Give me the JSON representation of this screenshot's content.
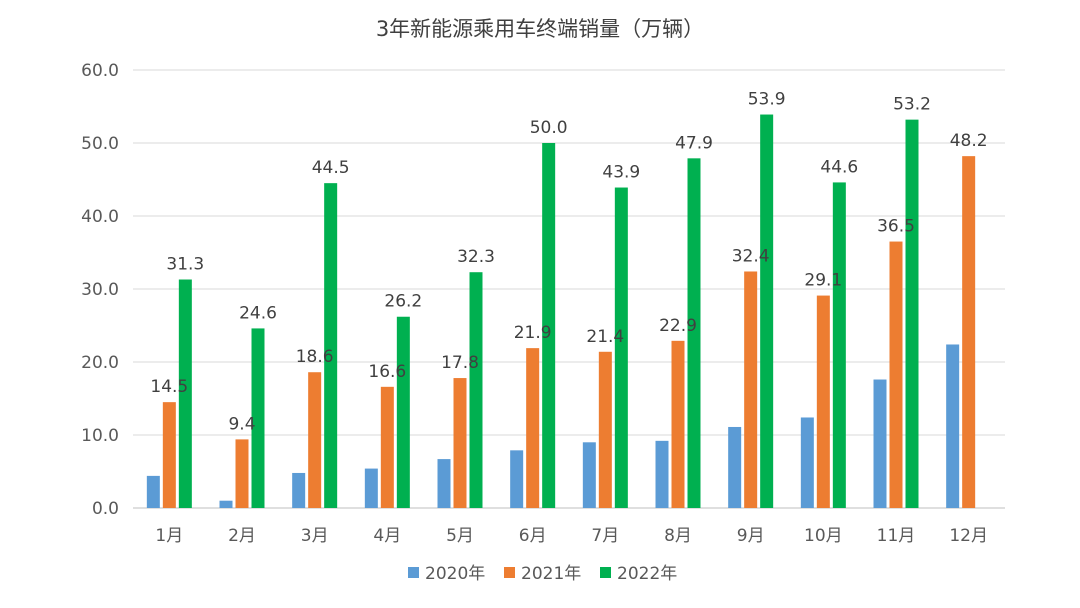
{
  "chart_data": {
    "type": "bar",
    "title": "3年新能源乘用车终端销量（万辆）",
    "xlabel": "",
    "ylabel": "",
    "ylim": [
      0,
      60
    ],
    "yticks": [
      "0.0",
      "10.0",
      "20.0",
      "30.0",
      "40.0",
      "50.0",
      "60.0"
    ],
    "grid": true,
    "legend_position": "bottom",
    "categories": [
      "1月",
      "2月",
      "3月",
      "4月",
      "5月",
      "6月",
      "7月",
      "8月",
      "9月",
      "10月",
      "11月",
      "12月"
    ],
    "series": [
      {
        "name": "2020年",
        "color": "#5b9bd5",
        "values": [
          4.4,
          1.0,
          4.8,
          5.4,
          6.7,
          7.9,
          9.0,
          9.2,
          11.1,
          12.4,
          17.6,
          22.4
        ],
        "labels": [
          "",
          "",
          "",
          "",
          "",
          "",
          "",
          "",
          "",
          "",
          "",
          ""
        ]
      },
      {
        "name": "2021年",
        "color": "#ed7d31",
        "values": [
          14.5,
          9.4,
          18.6,
          16.6,
          17.8,
          21.9,
          21.4,
          22.9,
          32.4,
          29.1,
          36.5,
          48.2
        ],
        "labels": [
          "14.5",
          "9.4",
          "18.6",
          "16.6",
          "17.8",
          "21.9",
          "21.4",
          "22.9",
          "32.4",
          "29.1",
          "36.5",
          "48.2"
        ]
      },
      {
        "name": "2022年",
        "color": "#00b050",
        "values": [
          31.3,
          24.6,
          44.5,
          26.2,
          32.3,
          50.0,
          43.9,
          47.9,
          53.9,
          44.6,
          53.2,
          null
        ],
        "labels": [
          "31.3",
          "24.6",
          "44.5",
          "26.2",
          "32.3",
          "50.0",
          "43.9",
          "47.9",
          "53.9",
          "44.6",
          "53.2",
          ""
        ]
      }
    ]
  }
}
